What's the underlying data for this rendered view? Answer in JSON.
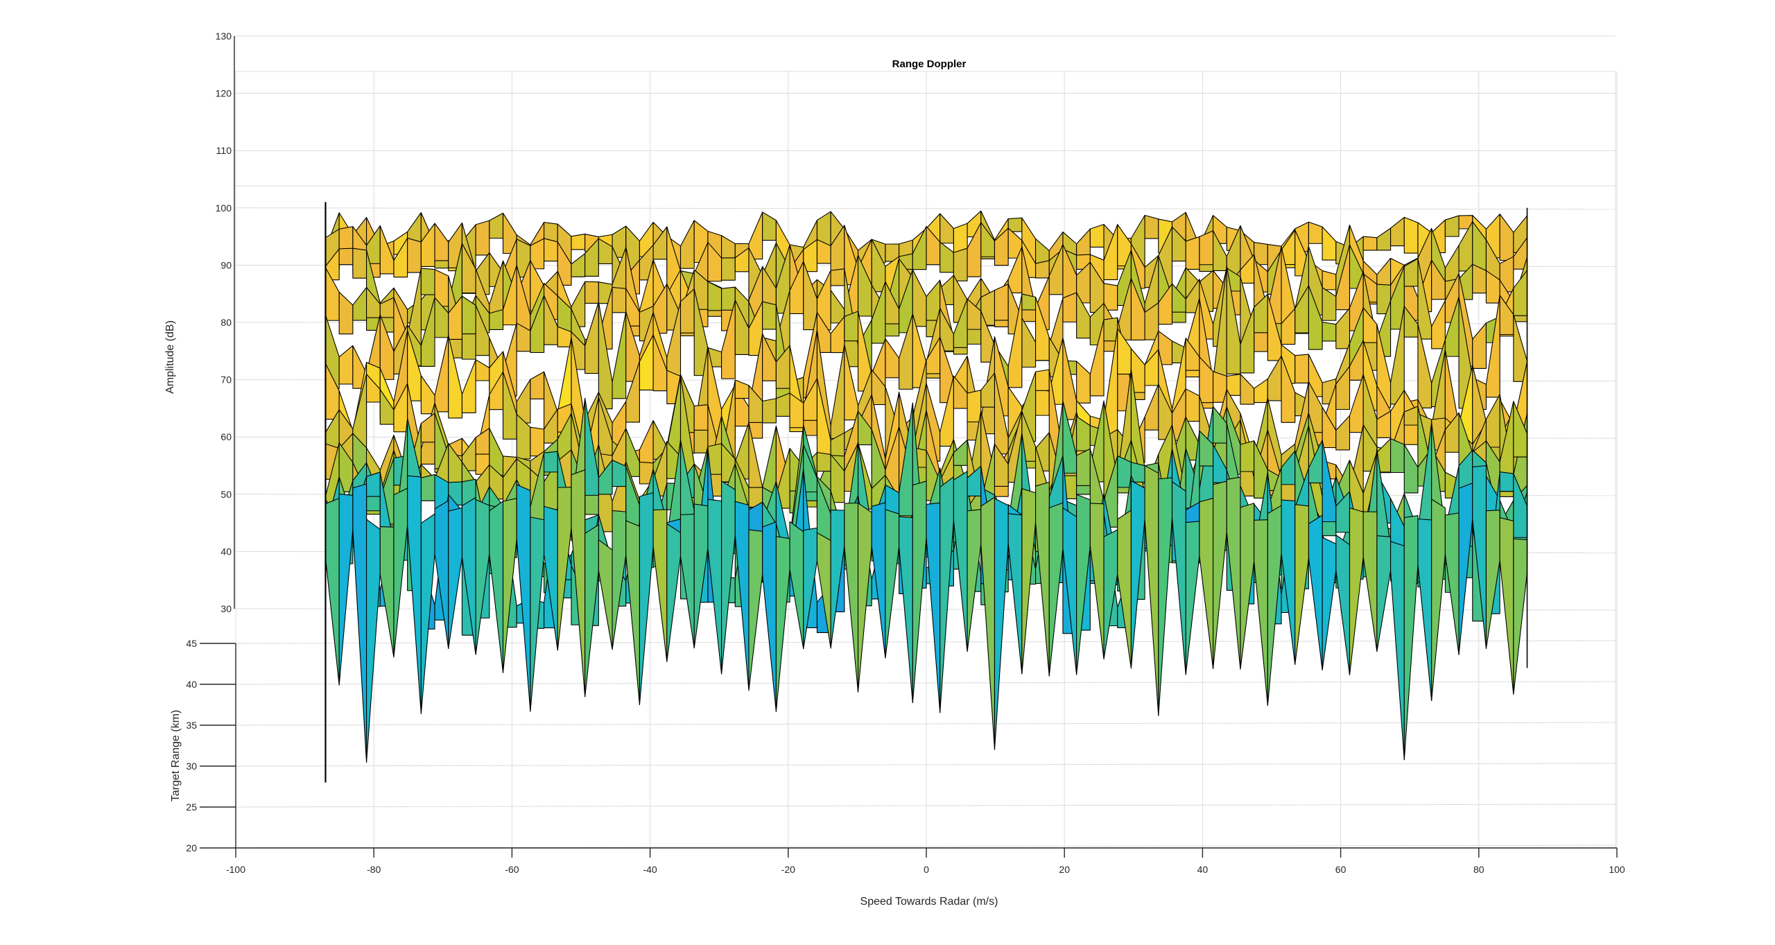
{
  "chart_data": {
    "type": "surface",
    "title": "Range Doppler",
    "xlabel": "Speed Towards Radar (m/s)",
    "ylabel": "Target Range (km)",
    "zlabel": "Amplitude (dB)",
    "xlim": [
      -100,
      100
    ],
    "ylim": [
      20,
      45
    ],
    "zlim": [
      30,
      130
    ],
    "x_ticks": [
      -100,
      -80,
      -60,
      -40,
      -20,
      0,
      20,
      40,
      60,
      80,
      100
    ],
    "y_ticks": [
      20,
      25,
      30,
      35,
      40,
      45
    ],
    "z_ticks": [
      30,
      40,
      50,
      60,
      70,
      80,
      90,
      100,
      110,
      120,
      130
    ],
    "x_tick_labels": [
      "-100",
      "-80",
      "-60",
      "-40",
      "-20",
      "0",
      "20",
      "40",
      "60",
      "80",
      "100"
    ],
    "y_tick_labels": [
      "20",
      "25",
      "30",
      "35",
      "40",
      "45"
    ],
    "z_tick_labels": [
      "30",
      "40",
      "50",
      "60",
      "70",
      "80",
      "90",
      "100",
      "110",
      "120",
      "130"
    ],
    "speed_extent": [
      -87,
      87
    ],
    "amplitude_range_db": [
      28,
      101
    ],
    "grid": true,
    "colormap": [
      "#3e26a8",
      "#1e7cf0",
      "#15b8d4",
      "#4cc37b",
      "#b6c532",
      "#f2b83a",
      "#fbe920"
    ],
    "edge_color": "#000000"
  }
}
